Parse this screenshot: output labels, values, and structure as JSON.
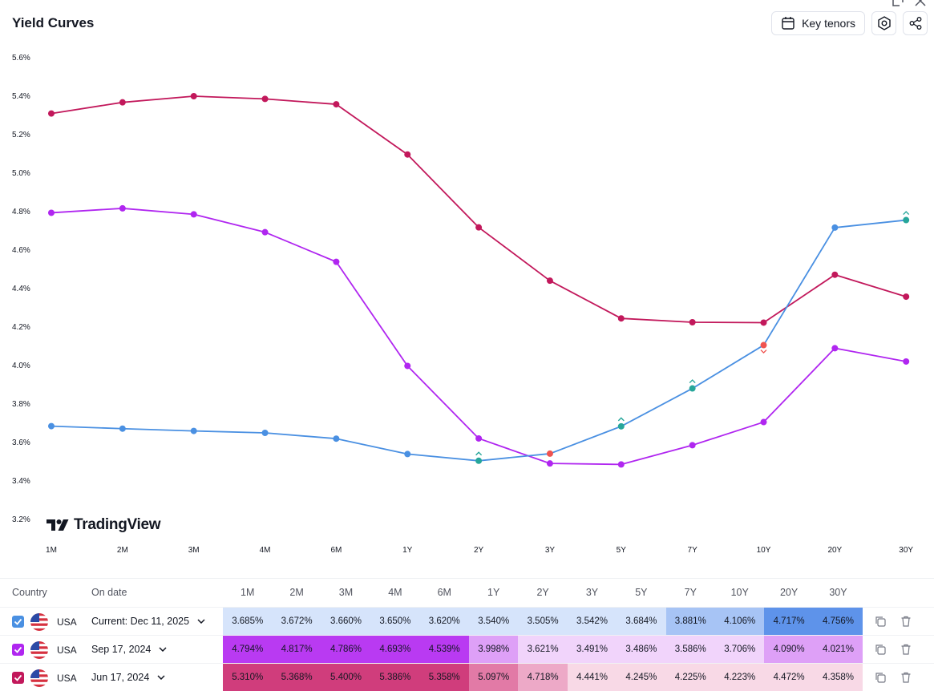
{
  "header": {
    "title": "Yield Curves",
    "key_tenors_label": "Key tenors",
    "logo_text": "TradingView"
  },
  "table": {
    "country_header": "Country",
    "date_header": "On date",
    "tenors": [
      "1M",
      "2M",
      "3M",
      "4M",
      "6M",
      "1Y",
      "2Y",
      "3Y",
      "5Y",
      "7Y",
      "10Y",
      "20Y",
      "30Y"
    ],
    "rows": [
      {
        "country": "USA",
        "date": "Current: Dec 11, 2025",
        "color": "#4a90e2",
        "values": [
          "3.685%",
          "3.672%",
          "3.660%",
          "3.650%",
          "3.620%",
          "3.540%",
          "3.505%",
          "3.542%",
          "3.684%",
          "3.881%",
          "4.106%",
          "4.717%",
          "4.756%"
        ],
        "cell_colors": [
          "#d6e4fb",
          "#d6e4fb",
          "#d6e4fb",
          "#d6e4fb",
          "#d6e4fb",
          "#d6e4fb",
          "#d6e4fb",
          "#d6e4fb",
          "#d6e4fb",
          "#a7c4f5",
          "#a7c4f5",
          "#5e93ea",
          "#5e93ea"
        ]
      },
      {
        "country": "USA",
        "date": "Sep 17, 2024",
        "color": "#b026f0",
        "values": [
          "4.794%",
          "4.817%",
          "4.786%",
          "4.693%",
          "4.539%",
          "3.998%",
          "3.621%",
          "3.491%",
          "3.486%",
          "3.586%",
          "3.706%",
          "4.090%",
          "4.021%"
        ],
        "cell_colors": [
          "#b93af2",
          "#b93af2",
          "#b93af2",
          "#b93af2",
          "#b93af2",
          "#dea0f7",
          "#f1d4fb",
          "#f1d4fb",
          "#f1d4fb",
          "#f1d4fb",
          "#f1d4fb",
          "#dea0f7",
          "#dea0f7"
        ]
      },
      {
        "country": "USA",
        "date": "Jun 17, 2024",
        "color": "#c2185b",
        "values": [
          "5.310%",
          "5.368%",
          "5.400%",
          "5.386%",
          "5.358%",
          "5.097%",
          "4.718%",
          "4.441%",
          "4.245%",
          "4.225%",
          "4.223%",
          "4.472%",
          "4.358%"
        ],
        "cell_colors": [
          "#d03d7c",
          "#d03d7c",
          "#d03d7c",
          "#d03d7c",
          "#d03d7c",
          "#e27aa6",
          "#eda9c7",
          "#f8d9e6",
          "#f8d9e6",
          "#f8d9e6",
          "#f8d9e6",
          "#f8d9e6",
          "#f8d9e6"
        ]
      }
    ]
  },
  "chart_data": {
    "type": "line",
    "title": "Yield Curves",
    "categories": [
      "1M",
      "2M",
      "3M",
      "4M",
      "6M",
      "1Y",
      "2Y",
      "3Y",
      "5Y",
      "7Y",
      "10Y",
      "20Y",
      "30Y"
    ],
    "y_ticks": [
      "3.2%",
      "3.4%",
      "3.6%",
      "3.8%",
      "4.0%",
      "4.2%",
      "4.4%",
      "4.6%",
      "4.8%",
      "5.0%",
      "5.2%",
      "5.4%",
      "5.6%"
    ],
    "ylim": [
      3.2,
      5.6
    ],
    "series": [
      {
        "name": "Current: Dec 11, 2025",
        "color": "#4a90e2",
        "values": [
          3.685,
          3.672,
          3.66,
          3.65,
          3.62,
          3.54,
          3.505,
          3.542,
          3.684,
          3.881,
          4.106,
          4.717,
          4.756
        ],
        "marker_colors": [
          "#4a90e2",
          "#4a90e2",
          "#4a90e2",
          "#4a90e2",
          "#4a90e2",
          "#4a90e2",
          "#26a69a",
          "#ef5350",
          "#26a69a",
          "#26a69a",
          "#ef5350",
          "#4a90e2",
          "#26a69a"
        ],
        "change_arrows": [
          "",
          "",
          "",
          "",
          "",
          "",
          "up",
          "",
          "up",
          "up",
          "down",
          "",
          "up"
        ]
      },
      {
        "name": "Sep 17, 2024",
        "color": "#b026f0",
        "values": [
          4.794,
          4.817,
          4.786,
          4.693,
          4.539,
          3.998,
          3.621,
          3.491,
          3.486,
          3.586,
          3.706,
          4.09,
          4.021
        ]
      },
      {
        "name": "Jun 17, 2024",
        "color": "#c2185b",
        "values": [
          5.31,
          5.368,
          5.4,
          5.386,
          5.358,
          5.097,
          4.718,
          4.441,
          4.245,
          4.225,
          4.223,
          4.472,
          4.358
        ]
      }
    ]
  }
}
